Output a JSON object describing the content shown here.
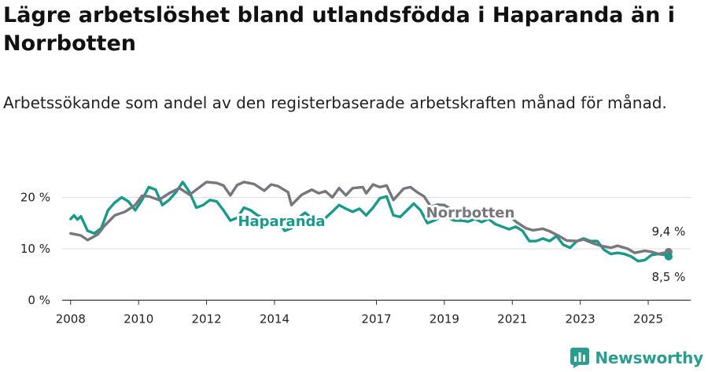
{
  "title": "Lägre arbetslöshet bland utlandsfödda i Haparanda än i Norrbotten",
  "subtitle": "Arbetssökande som andel av den registerbaserade arbetskraften månad för månad.",
  "brand": "Newsworthy",
  "colors": {
    "haparanda": "#18998a",
    "norrbotten": "#76777c",
    "grid": "#dddddd",
    "axis": "#333333"
  },
  "chart_data": {
    "type": "line",
    "title": "Lägre arbetslöshet bland utlandsfödda i Haparanda än i Norrbotten",
    "subtitle": "Arbetssökande som andel av den registerbaserade arbetskraften månad för månad.",
    "xlabel": "",
    "ylabel": "",
    "xlim": [
      2007.75,
      2026.25
    ],
    "ylim": [
      0,
      22
    ],
    "x_ticks": [
      2008,
      2010,
      2012,
      2014,
      2017,
      2019,
      2021,
      2023,
      2025
    ],
    "x_tick_labels": [
      "2008",
      "2010",
      "2012",
      "2014",
      "2017",
      "2019",
      "2021",
      "2023",
      "2025"
    ],
    "y_ticks": [
      0,
      10,
      20
    ],
    "y_tick_labels": [
      "0 %",
      "10 %",
      "20 %"
    ],
    "grid": true,
    "series": [
      {
        "name": "Norrbotten",
        "end_label": "9,4 %",
        "points": [
          [
            2008.0,
            13.0
          ],
          [
            2008.3,
            12.6
          ],
          [
            2008.5,
            11.7
          ],
          [
            2008.8,
            12.8
          ],
          [
            2009.0,
            14.5
          ],
          [
            2009.3,
            16.5
          ],
          [
            2009.6,
            17.2
          ],
          [
            2009.9,
            18.5
          ],
          [
            2010.1,
            20.3
          ],
          [
            2010.3,
            20.2
          ],
          [
            2010.6,
            19.5
          ],
          [
            2010.9,
            20.8
          ],
          [
            2011.2,
            21.8
          ],
          [
            2011.5,
            20.5
          ],
          [
            2011.7,
            21.5
          ],
          [
            2012.0,
            23.0
          ],
          [
            2012.3,
            22.8
          ],
          [
            2012.5,
            22.3
          ],
          [
            2012.7,
            20.4
          ],
          [
            2012.9,
            22.4
          ],
          [
            2013.1,
            23.0
          ],
          [
            2013.4,
            22.6
          ],
          [
            2013.7,
            21.3
          ],
          [
            2013.9,
            22.5
          ],
          [
            2014.1,
            22.2
          ],
          [
            2014.4,
            21.0
          ],
          [
            2014.5,
            18.5
          ],
          [
            2014.8,
            20.5
          ],
          [
            2015.1,
            21.5
          ],
          [
            2015.3,
            20.8
          ],
          [
            2015.5,
            21.2
          ],
          [
            2015.7,
            20.0
          ],
          [
            2015.9,
            21.8
          ],
          [
            2016.1,
            20.4
          ],
          [
            2016.3,
            21.8
          ],
          [
            2016.6,
            22.0
          ],
          [
            2016.7,
            20.8
          ],
          [
            2016.9,
            22.5
          ],
          [
            2017.1,
            22.0
          ],
          [
            2017.3,
            22.3
          ],
          [
            2017.5,
            19.5
          ],
          [
            2017.8,
            21.7
          ],
          [
            2018.0,
            22.0
          ],
          [
            2018.2,
            21.0
          ],
          [
            2018.4,
            20.2
          ],
          [
            2018.6,
            18.2
          ],
          [
            2018.8,
            18.6
          ],
          [
            2019.0,
            18.5
          ],
          [
            2019.2,
            17.7
          ],
          [
            2019.5,
            16.0
          ],
          [
            2019.8,
            16.3
          ],
          [
            2020.1,
            16.2
          ],
          [
            2020.4,
            17.2
          ],
          [
            2020.6,
            16.9
          ],
          [
            2020.9,
            16.5
          ],
          [
            2021.1,
            15.3
          ],
          [
            2021.4,
            14.0
          ],
          [
            2021.6,
            13.6
          ],
          [
            2021.9,
            13.9
          ],
          [
            2022.1,
            13.4
          ],
          [
            2022.4,
            12.4
          ],
          [
            2022.6,
            11.6
          ],
          [
            2022.9,
            11.5
          ],
          [
            2023.1,
            11.8
          ],
          [
            2023.4,
            11.0
          ],
          [
            2023.6,
            10.6
          ],
          [
            2023.9,
            10.2
          ],
          [
            2024.1,
            10.6
          ],
          [
            2024.4,
            10.0
          ],
          [
            2024.6,
            9.2
          ],
          [
            2024.9,
            9.6
          ],
          [
            2025.1,
            9.4
          ],
          [
            2025.3,
            9.0
          ],
          [
            2025.6,
            9.4
          ]
        ]
      },
      {
        "name": "Haparanda",
        "end_label": "8,5 %",
        "points": [
          [
            2008.0,
            15.8
          ],
          [
            2008.1,
            16.5
          ],
          [
            2008.2,
            15.7
          ],
          [
            2008.3,
            16.3
          ],
          [
            2008.5,
            13.5
          ],
          [
            2008.7,
            13.0
          ],
          [
            2008.9,
            14.0
          ],
          [
            2009.1,
            17.5
          ],
          [
            2009.3,
            19.0
          ],
          [
            2009.5,
            20.0
          ],
          [
            2009.7,
            19.2
          ],
          [
            2009.9,
            17.5
          ],
          [
            2010.1,
            19.5
          ],
          [
            2010.3,
            22.0
          ],
          [
            2010.5,
            21.5
          ],
          [
            2010.7,
            18.5
          ],
          [
            2010.9,
            19.5
          ],
          [
            2011.1,
            21.0
          ],
          [
            2011.3,
            23.0
          ],
          [
            2011.5,
            21.0
          ],
          [
            2011.7,
            18.0
          ],
          [
            2011.9,
            18.5
          ],
          [
            2012.1,
            19.5
          ],
          [
            2012.3,
            19.2
          ],
          [
            2012.5,
            17.5
          ],
          [
            2012.7,
            15.5
          ],
          [
            2012.9,
            16.0
          ],
          [
            2013.1,
            18.0
          ],
          [
            2013.3,
            17.5
          ],
          [
            2013.5,
            16.5
          ],
          [
            2013.7,
            16.0
          ],
          [
            2013.9,
            15.5
          ],
          [
            2014.1,
            15.5
          ],
          [
            2014.3,
            13.5
          ],
          [
            2014.5,
            14.0
          ],
          [
            2014.7,
            16.0
          ],
          [
            2014.9,
            17.0
          ],
          [
            2015.1,
            16.0
          ],
          [
            2015.3,
            15.5
          ],
          [
            2015.5,
            16.0
          ],
          [
            2015.7,
            17.2
          ],
          [
            2015.9,
            18.5
          ],
          [
            2016.1,
            17.8
          ],
          [
            2016.3,
            17.2
          ],
          [
            2016.5,
            17.8
          ],
          [
            2016.7,
            16.5
          ],
          [
            2016.9,
            18.0
          ],
          [
            2017.1,
            19.8
          ],
          [
            2017.3,
            20.2
          ],
          [
            2017.5,
            16.5
          ],
          [
            2017.7,
            16.2
          ],
          [
            2017.9,
            17.5
          ],
          [
            2018.1,
            18.8
          ],
          [
            2018.3,
            17.5
          ],
          [
            2018.5,
            15.0
          ],
          [
            2018.7,
            15.5
          ],
          [
            2018.9,
            16.2
          ],
          [
            2019.1,
            16.0
          ],
          [
            2019.3,
            15.5
          ],
          [
            2019.5,
            15.5
          ],
          [
            2019.7,
            15.3
          ],
          [
            2019.9,
            15.8
          ],
          [
            2020.1,
            15.2
          ],
          [
            2020.3,
            15.8
          ],
          [
            2020.5,
            14.8
          ],
          [
            2020.7,
            14.3
          ],
          [
            2020.9,
            13.8
          ],
          [
            2021.1,
            14.3
          ],
          [
            2021.3,
            13.5
          ],
          [
            2021.5,
            11.5
          ],
          [
            2021.7,
            11.5
          ],
          [
            2021.9,
            12.0
          ],
          [
            2022.1,
            11.5
          ],
          [
            2022.3,
            12.5
          ],
          [
            2022.5,
            10.8
          ],
          [
            2022.7,
            10.2
          ],
          [
            2022.9,
            11.5
          ],
          [
            2023.1,
            12.0
          ],
          [
            2023.3,
            11.5
          ],
          [
            2023.5,
            11.5
          ],
          [
            2023.7,
            9.8
          ],
          [
            2023.9,
            9.0
          ],
          [
            2024.1,
            9.2
          ],
          [
            2024.3,
            9.0
          ],
          [
            2024.5,
            8.5
          ],
          [
            2024.7,
            7.6
          ],
          [
            2024.9,
            7.8
          ],
          [
            2025.1,
            8.8
          ],
          [
            2025.3,
            9.0
          ],
          [
            2025.5,
            8.8
          ],
          [
            2025.6,
            8.5
          ]
        ]
      }
    ]
  }
}
